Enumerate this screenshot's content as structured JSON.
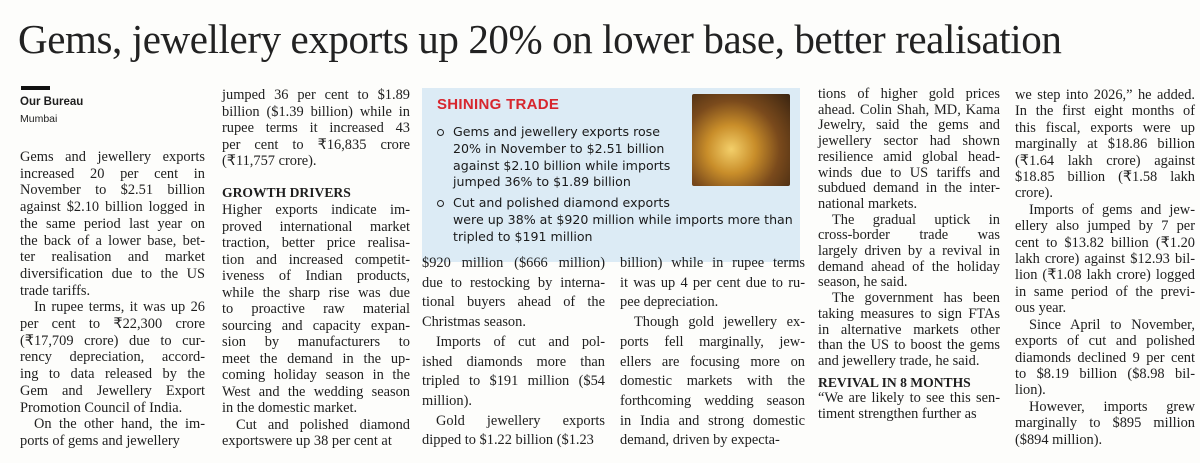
{
  "headline": "Gems, jewellery exports up 20% on lower base, better realisation",
  "byline": {
    "author": "Our Bureau",
    "place": "Mumbai"
  },
  "box": {
    "title": "SHINING TRADE",
    "bullets": [
      [
        "Gems and jewellery exports rose",
        "20% in November to $2.51 billion",
        "against $2.10 billion while imports",
        "jumped 36% to $1.89 billion"
      ],
      [
        "Cut and polished diamond exports",
        "were up 38% at $920 million while imports more than",
        "tripled to $191 million"
      ]
    ]
  },
  "columns": [
    [
      [
        "Gems and jewellery exports",
        "increased 20 per cent in",
        "November to $2.51 billion",
        "against $2.10 billion logged in",
        "the same period last year on",
        "the back of a lower base, bet-",
        "ter realisation and market",
        "diversification due to the US",
        "trade tariffs."
      ],
      [
        "In rupee terms, it was up 26",
        "per cent to ₹22,300 crore",
        "(₹17,709 crore) due to cur-",
        "rency depreciation, accord-",
        "ing to data released by the",
        "Gem and Jewellery Export",
        "Promotion Council of India."
      ],
      [
        "On the other hand, the im-",
        "ports of gems and jewellery"
      ]
    ],
    [
      [
        "jumped 36 per cent to $1.89",
        "billion ($1.39 billion) while in",
        "rupee terms it increased 43",
        "per cent to ₹16,835 crore",
        "(₹11,757 crore)."
      ],
      "GROWTH DRIVERS",
      [
        "Higher exports indicate im-",
        "proved international market",
        "traction, better price realisa-",
        "tion and increased competit-",
        "iveness of Indian products,",
        "while the sharp rise was due",
        "to proactive raw material",
        "sourcing and capacity expan-",
        "sion by manufacturers to",
        "meet the demand in the up-",
        "coming holiday season in the",
        "West and the wedding season",
        "in the domestic market."
      ],
      [
        "Cut and polished diamond",
        "exportswere up 38 per cent at"
      ]
    ],
    [
      [
        "$920 million ($666 million)",
        "due to restocking by interna-",
        "tional buyers ahead of the",
        "Christmas season."
      ],
      [
        "Imports of cut and pol-",
        "ished diamonds more than",
        "tripled to $191 million ($54",
        "million)."
      ],
      [
        "Gold jewellery exports",
        "dipped to $1.22 billion ($1.23"
      ]
    ],
    [
      [
        "billion) while in rupee terms",
        "it was up 4 per cent due to ru-",
        "pee depreciation."
      ],
      [
        "Though gold jewellery ex-",
        "ports fell marginally, jew-",
        "ellers are focusing more on",
        "domestic markets with the",
        "forthcoming wedding season",
        "in India and strong domestic",
        "demand, driven by expecta-"
      ]
    ],
    [
      [
        "tions of higher gold prices",
        "ahead. Colin Shah, MD, Kama",
        "Jewelry, said the gems and",
        "jewellery sector had shown",
        "resilience amid global head-",
        "winds due to US tariffs and",
        "subdued demand in the inter-",
        "national markets."
      ],
      [
        "The gradual uptick in",
        "cross-border trade was",
        "largely driven by a revival in",
        "demand ahead of the holiday",
        "season, he said."
      ],
      [
        "The government has been",
        "taking measures to sign FTAs",
        "in alternative markets other",
        "than the US to boost the gems",
        "and jewellery trade, he said."
      ],
      "REVIVAL IN 8 MONTHS",
      [
        "“We are likely to see this sen-",
        "timent strengthen further as"
      ]
    ],
    [
      [
        "we step into 2026,” he added.",
        "In the first eight months of",
        "this fiscal, exports were up",
        "marginally at $18.86 billion",
        "(₹1.64 lakh crore) against",
        "$18.85 billion (₹1.58 lakh",
        "crore)."
      ],
      [
        "Imports of gems and jew-",
        "ellery also jumped by 7 per",
        "cent to $13.82 billion (₹1.20",
        "lakh crore) against $12.93 bil-",
        "lion (₹1.08 lakh crore) logged",
        "in same period of the previ-",
        "ous year."
      ],
      [
        "Since April to November,",
        "exports of cut and polished",
        "diamonds declined 9 per cent",
        "to $8.19 billion ($8.98 bil-",
        "lion)."
      ],
      [
        "However, imports grew",
        "marginally to $895 million",
        "($894 million)."
      ]
    ]
  ]
}
